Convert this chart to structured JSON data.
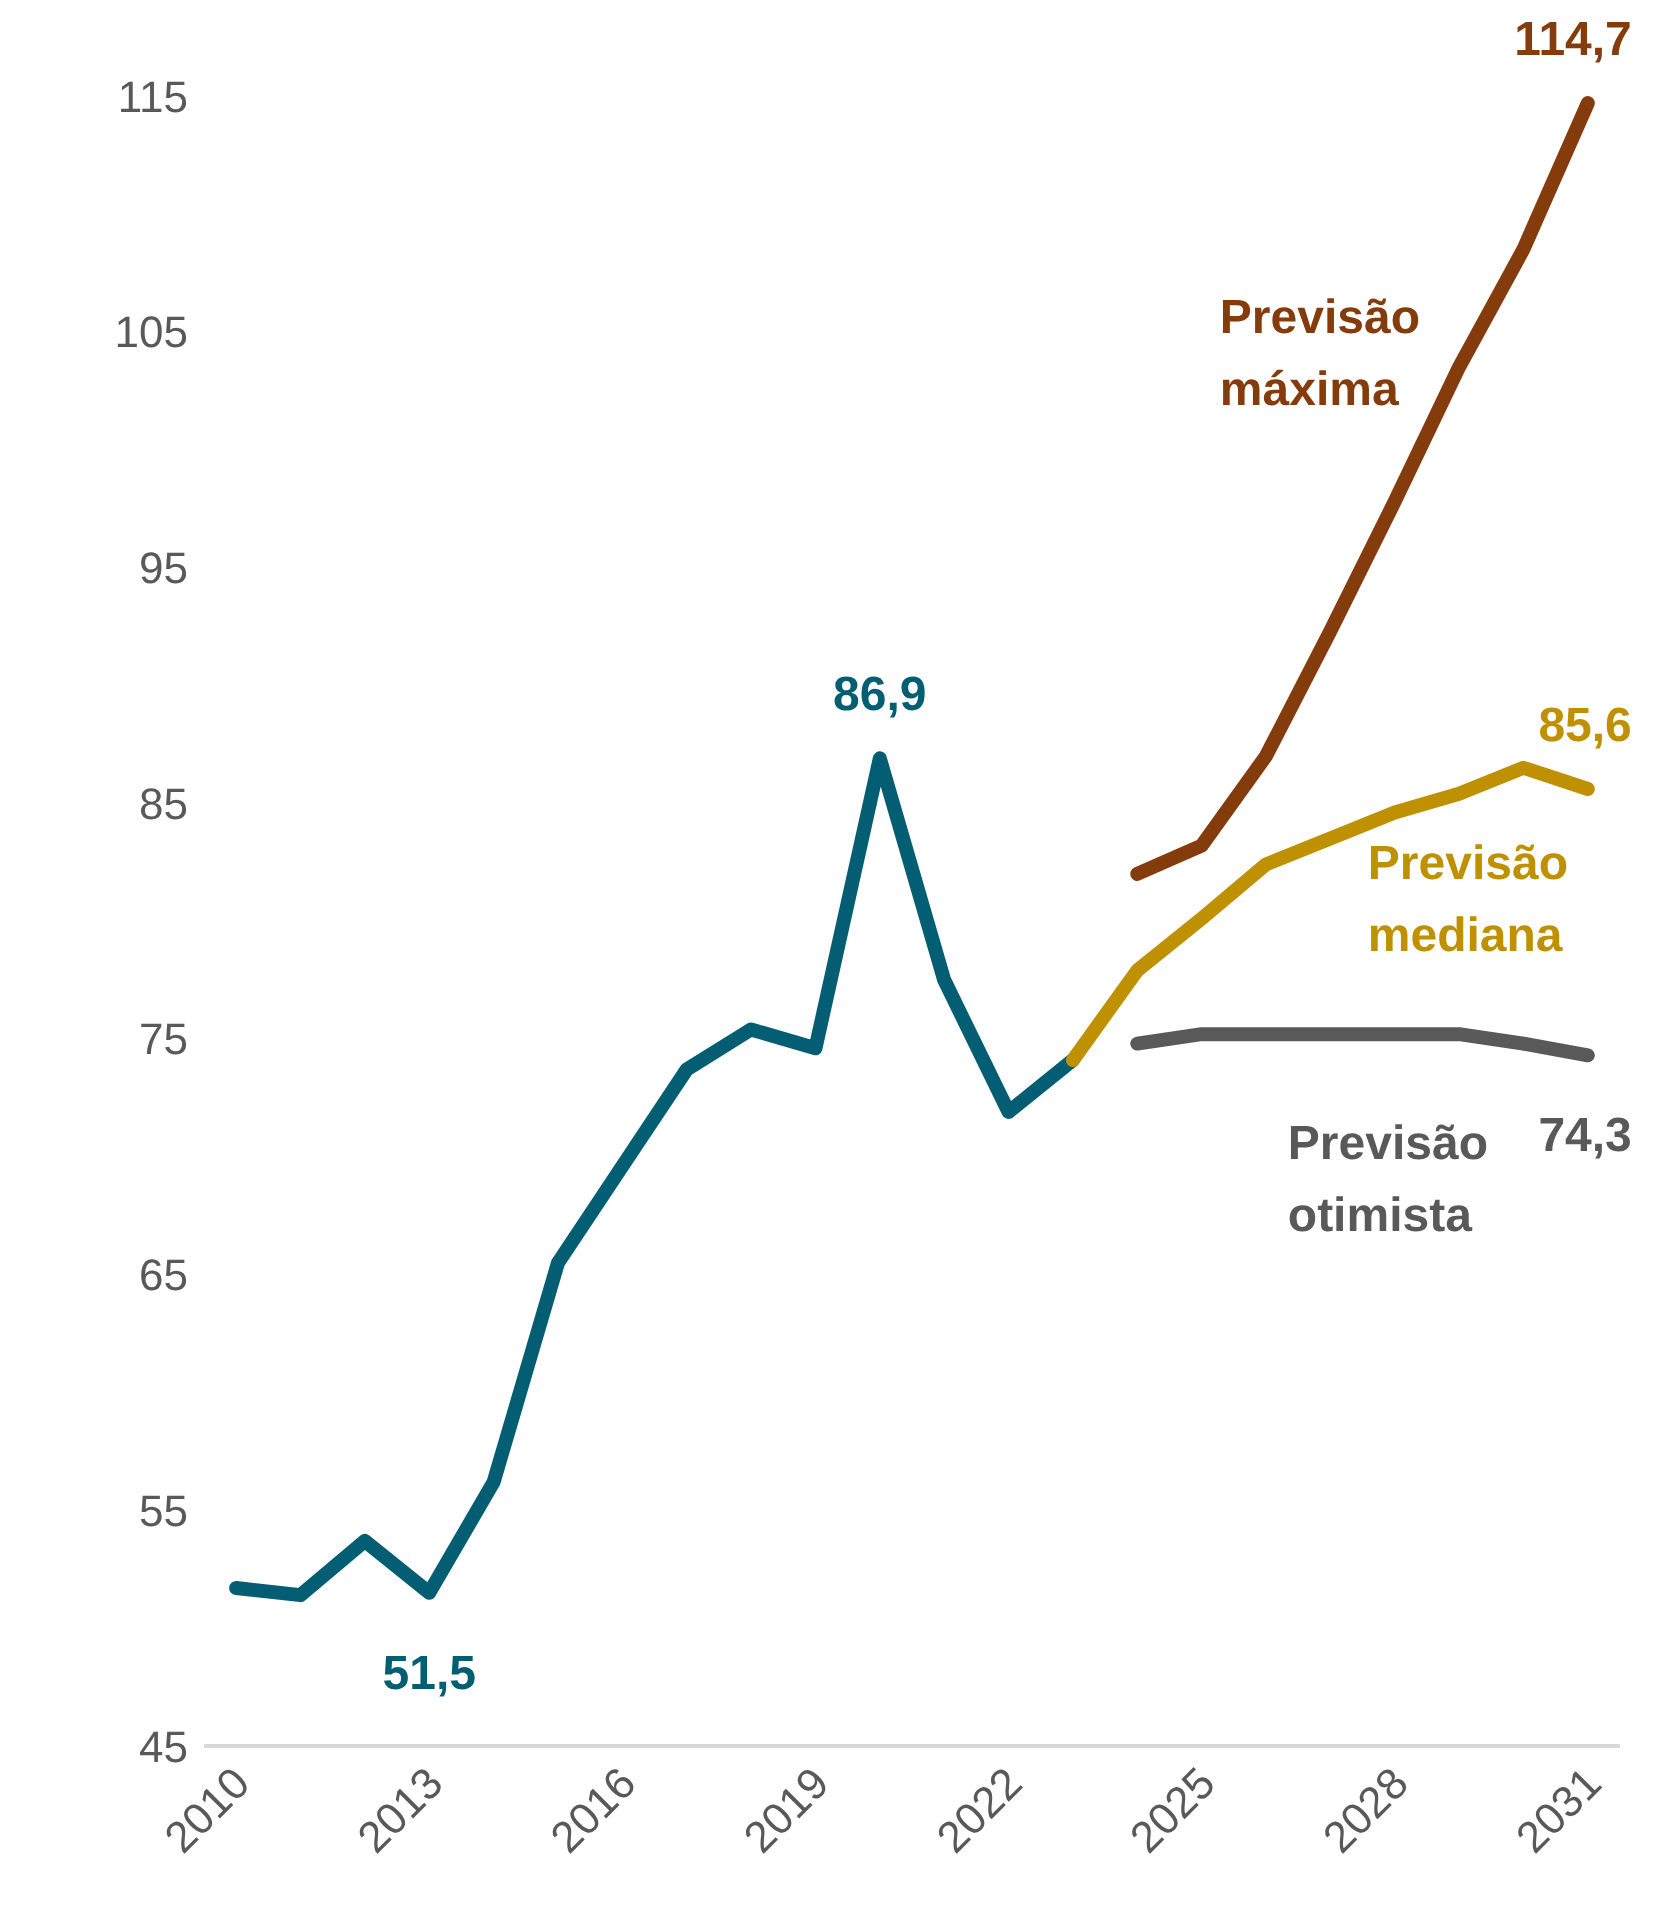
{
  "chart_data": {
    "type": "line",
    "x": [
      2010,
      2011,
      2012,
      2013,
      2014,
      2015,
      2016,
      2017,
      2018,
      2019,
      2020,
      2021,
      2022,
      2023,
      2024,
      2025,
      2026,
      2027,
      2028,
      2029,
      2030,
      2031
    ],
    "series": [
      {
        "color": "#035e73",
        "values": [
          51.7,
          51.4,
          53.7,
          51.5,
          56.2,
          65.5,
          69.6,
          73.7,
          75.4,
          74.6,
          86.9,
          77.5,
          71.9,
          74.1,
          null,
          null,
          null,
          null,
          null,
          null,
          null,
          null
        ],
        "value_labels": [
          null,
          null,
          null,
          "51,5",
          null,
          null,
          null,
          null,
          null,
          null,
          "86,9",
          null,
          null,
          null,
          null,
          null,
          null,
          null,
          null,
          null,
          null,
          null
        ]
      },
      {
        "name": "Previsão máxima",
        "color": "#843c0c",
        "values": [
          null,
          null,
          null,
          null,
          null,
          null,
          null,
          null,
          null,
          null,
          null,
          null,
          null,
          null,
          82.0,
          83.2,
          87.0,
          92.3,
          97.8,
          103.5,
          108.5,
          114.7
        ],
        "value_labels": [
          null,
          null,
          null,
          null,
          null,
          null,
          null,
          null,
          null,
          null,
          null,
          null,
          null,
          null,
          null,
          null,
          null,
          null,
          null,
          null,
          null,
          "114,7"
        ]
      },
      {
        "name": "Previsão mediana",
        "color": "#bf9000",
        "values": [
          null,
          null,
          null,
          null,
          null,
          null,
          null,
          null,
          null,
          null,
          null,
          null,
          null,
          74.1,
          77.9,
          80.1,
          82.4,
          83.5,
          84.6,
          85.4,
          86.5,
          85.6
        ],
        "value_labels": [
          null,
          null,
          null,
          null,
          null,
          null,
          null,
          null,
          null,
          null,
          null,
          null,
          null,
          null,
          null,
          null,
          null,
          null,
          null,
          null,
          null,
          "85,6"
        ]
      },
      {
        "name": "Previsão otimista",
        "color": "#595959",
        "values": [
          null,
          null,
          null,
          null,
          null,
          null,
          null,
          null,
          null,
          null,
          null,
          null,
          null,
          null,
          74.8,
          75.2,
          75.2,
          75.2,
          75.2,
          75.2,
          74.8,
          74.3
        ],
        "value_labels": [
          null,
          null,
          null,
          null,
          null,
          null,
          null,
          null,
          null,
          null,
          null,
          null,
          null,
          null,
          null,
          null,
          null,
          null,
          null,
          null,
          null,
          "74,3"
        ]
      }
    ],
    "xlim": [
      2009.5,
      2031.5
    ],
    "xticks": [
      2010,
      2013,
      2016,
      2019,
      2022,
      2025,
      2028,
      2031
    ],
    "ylim": [
      45,
      115
    ],
    "yticks": [
      45,
      55,
      65,
      75,
      85,
      95,
      105,
      115
    ],
    "grid": false,
    "marker": "none",
    "line_style": "solid"
  }
}
